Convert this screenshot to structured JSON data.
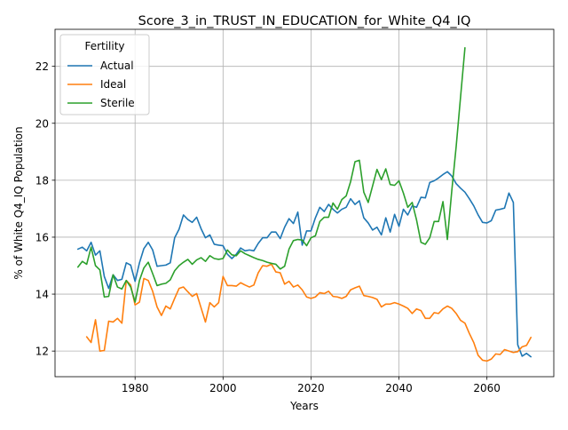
{
  "chart_data": {
    "type": "line",
    "title": "Score_3_in_TRUST_IN_EDUCATION_for_White_Q4_IQ",
    "xlabel": "Years",
    "ylabel": "% of White Q4_IQ Population",
    "xlim": [
      1961.8,
      2075.2
    ],
    "ylim": [
      11.1,
      23.3
    ],
    "xticks": [
      1980,
      2000,
      2020,
      2040,
      2060
    ],
    "yticks": [
      12,
      14,
      16,
      18,
      20,
      22
    ],
    "grid": true,
    "legend": {
      "title": "Fertility",
      "placement": "upper left"
    },
    "series": [
      {
        "name": "Actual",
        "color": "#1f77b4",
        "points": [
          [
            1967,
            15.58
          ],
          [
            1968,
            15.65
          ],
          [
            1969,
            15.52
          ],
          [
            1970,
            15.82
          ],
          [
            1971,
            15.37
          ],
          [
            1972,
            15.52
          ],
          [
            1973,
            14.62
          ],
          [
            1974,
            14.2
          ],
          [
            1975,
            14.68
          ],
          [
            1976,
            14.48
          ],
          [
            1977,
            14.52
          ],
          [
            1978,
            15.1
          ],
          [
            1979,
            15.02
          ],
          [
            1980,
            14.45
          ],
          [
            1981,
            15.1
          ],
          [
            1982,
            15.6
          ],
          [
            1983,
            15.82
          ],
          [
            1984,
            15.55
          ],
          [
            1985,
            14.98
          ],
          [
            1986,
            15.0
          ],
          [
            1987,
            15.02
          ],
          [
            1988,
            15.1
          ],
          [
            1989,
            15.98
          ],
          [
            1990,
            16.28
          ],
          [
            1991,
            16.78
          ],
          [
            1992,
            16.62
          ],
          [
            1993,
            16.52
          ],
          [
            1994,
            16.7
          ],
          [
            1995,
            16.3
          ],
          [
            1996,
            15.98
          ],
          [
            1997,
            16.08
          ],
          [
            1998,
            15.75
          ],
          [
            1999,
            15.72
          ],
          [
            2000,
            15.7
          ],
          [
            2001,
            15.4
          ],
          [
            2002,
            15.25
          ],
          [
            2003,
            15.4
          ],
          [
            2004,
            15.62
          ],
          [
            2005,
            15.52
          ],
          [
            2006,
            15.55
          ],
          [
            2007,
            15.52
          ],
          [
            2008,
            15.78
          ],
          [
            2009,
            15.98
          ],
          [
            2010,
            15.98
          ],
          [
            2011,
            16.18
          ],
          [
            2012,
            16.18
          ],
          [
            2013,
            15.95
          ],
          [
            2014,
            16.35
          ],
          [
            2015,
            16.65
          ],
          [
            2016,
            16.48
          ],
          [
            2017,
            16.88
          ],
          [
            2018,
            15.72
          ],
          [
            2019,
            16.22
          ],
          [
            2020,
            16.22
          ],
          [
            2021,
            16.68
          ],
          [
            2022,
            17.05
          ],
          [
            2023,
            16.9
          ],
          [
            2024,
            17.15
          ],
          [
            2025,
            16.98
          ],
          [
            2026,
            16.85
          ],
          [
            2027,
            16.98
          ],
          [
            2028,
            17.05
          ],
          [
            2029,
            17.35
          ],
          [
            2030,
            17.15
          ],
          [
            2031,
            17.28
          ],
          [
            2032,
            16.68
          ],
          [
            2033,
            16.5
          ],
          [
            2034,
            16.25
          ],
          [
            2035,
            16.35
          ],
          [
            2036,
            16.08
          ],
          [
            2037,
            16.68
          ],
          [
            2038,
            16.18
          ],
          [
            2039,
            16.8
          ],
          [
            2040,
            16.38
          ],
          [
            2041,
            16.98
          ],
          [
            2042,
            16.78
          ],
          [
            2043,
            17.1
          ],
          [
            2044,
            17.05
          ],
          [
            2045,
            17.4
          ],
          [
            2046,
            17.38
          ],
          [
            2047,
            17.92
          ],
          [
            2048,
            17.98
          ],
          [
            2049,
            18.08
          ],
          [
            2050,
            18.2
          ],
          [
            2051,
            18.3
          ],
          [
            2052,
            18.15
          ],
          [
            2053,
            17.88
          ],
          [
            2054,
            17.72
          ],
          [
            2055,
            17.58
          ],
          [
            2056,
            17.35
          ],
          [
            2057,
            17.1
          ],
          [
            2058,
            16.78
          ],
          [
            2059,
            16.52
          ],
          [
            2060,
            16.5
          ],
          [
            2061,
            16.58
          ],
          [
            2062,
            16.95
          ],
          [
            2063,
            16.98
          ],
          [
            2064,
            17.02
          ],
          [
            2065,
            17.55
          ],
          [
            2066,
            17.22
          ],
          [
            2067,
            12.22
          ],
          [
            2068,
            11.82
          ],
          [
            2069,
            11.92
          ],
          [
            2070,
            11.8
          ]
        ]
      },
      {
        "name": "Ideal",
        "color": "#ff7f0e",
        "points": [
          [
            1969,
            12.5
          ],
          [
            1970,
            12.3
          ],
          [
            1971,
            13.1
          ],
          [
            1972,
            12.0
          ],
          [
            1973,
            12.02
          ],
          [
            1974,
            13.05
          ],
          [
            1975,
            13.02
          ],
          [
            1976,
            13.15
          ],
          [
            1977,
            12.98
          ],
          [
            1978,
            14.48
          ],
          [
            1979,
            14.32
          ],
          [
            1980,
            13.62
          ],
          [
            1981,
            13.72
          ],
          [
            1982,
            14.55
          ],
          [
            1983,
            14.48
          ],
          [
            1984,
            14.1
          ],
          [
            1985,
            13.55
          ],
          [
            1986,
            13.25
          ],
          [
            1987,
            13.58
          ],
          [
            1988,
            13.48
          ],
          [
            1989,
            13.85
          ],
          [
            1990,
            14.2
          ],
          [
            1991,
            14.25
          ],
          [
            1992,
            14.08
          ],
          [
            1993,
            13.92
          ],
          [
            1994,
            14.02
          ],
          [
            1995,
            13.52
          ],
          [
            1996,
            13.02
          ],
          [
            1997,
            13.7
          ],
          [
            1998,
            13.55
          ],
          [
            1999,
            13.7
          ],
          [
            2000,
            14.62
          ],
          [
            2001,
            14.3
          ],
          [
            2002,
            14.3
          ],
          [
            2003,
            14.28
          ],
          [
            2004,
            14.4
          ],
          [
            2005,
            14.32
          ],
          [
            2006,
            14.25
          ],
          [
            2007,
            14.32
          ],
          [
            2008,
            14.75
          ],
          [
            2009,
            15.0
          ],
          [
            2010,
            14.98
          ],
          [
            2011,
            15.05
          ],
          [
            2012,
            14.78
          ],
          [
            2013,
            14.75
          ],
          [
            2014,
            14.35
          ],
          [
            2015,
            14.45
          ],
          [
            2016,
            14.25
          ],
          [
            2017,
            14.32
          ],
          [
            2018,
            14.15
          ],
          [
            2019,
            13.9
          ],
          [
            2020,
            13.85
          ],
          [
            2021,
            13.9
          ],
          [
            2022,
            14.05
          ],
          [
            2023,
            14.02
          ],
          [
            2024,
            14.1
          ],
          [
            2025,
            13.92
          ],
          [
            2026,
            13.9
          ],
          [
            2027,
            13.85
          ],
          [
            2028,
            13.92
          ],
          [
            2029,
            14.15
          ],
          [
            2030,
            14.22
          ],
          [
            2031,
            14.28
          ],
          [
            2032,
            13.95
          ],
          [
            2033,
            13.92
          ],
          [
            2034,
            13.88
          ],
          [
            2035,
            13.82
          ],
          [
            2036,
            13.55
          ],
          [
            2037,
            13.65
          ],
          [
            2038,
            13.65
          ],
          [
            2039,
            13.7
          ],
          [
            2040,
            13.65
          ],
          [
            2041,
            13.58
          ],
          [
            2042,
            13.5
          ],
          [
            2043,
            13.32
          ],
          [
            2044,
            13.48
          ],
          [
            2045,
            13.42
          ],
          [
            2046,
            13.15
          ],
          [
            2047,
            13.15
          ],
          [
            2048,
            13.35
          ],
          [
            2049,
            13.32
          ],
          [
            2050,
            13.48
          ],
          [
            2051,
            13.58
          ],
          [
            2052,
            13.5
          ],
          [
            2053,
            13.32
          ],
          [
            2054,
            13.08
          ],
          [
            2055,
            12.98
          ],
          [
            2056,
            12.62
          ],
          [
            2057,
            12.3
          ],
          [
            2058,
            11.85
          ],
          [
            2059,
            11.68
          ],
          [
            2060,
            11.65
          ],
          [
            2061,
            11.72
          ],
          [
            2062,
            11.9
          ],
          [
            2063,
            11.88
          ],
          [
            2064,
            12.05
          ],
          [
            2065,
            12.0
          ],
          [
            2066,
            11.95
          ],
          [
            2067,
            11.98
          ],
          [
            2068,
            12.15
          ],
          [
            2069,
            12.2
          ],
          [
            2070,
            12.48
          ]
        ]
      },
      {
        "name": "Sterile",
        "color": "#2ca02c",
        "points": [
          [
            1967,
            14.95
          ],
          [
            1968,
            15.15
          ],
          [
            1969,
            15.05
          ],
          [
            1970,
            15.65
          ],
          [
            1971,
            15.0
          ],
          [
            1972,
            14.85
          ],
          [
            1973,
            13.9
          ],
          [
            1974,
            13.92
          ],
          [
            1975,
            14.68
          ],
          [
            1976,
            14.25
          ],
          [
            1977,
            14.18
          ],
          [
            1978,
            14.48
          ],
          [
            1979,
            14.25
          ],
          [
            1980,
            13.72
          ],
          [
            1981,
            14.48
          ],
          [
            1982,
            14.92
          ],
          [
            1983,
            15.12
          ],
          [
            1984,
            14.72
          ],
          [
            1985,
            14.3
          ],
          [
            1986,
            14.35
          ],
          [
            1987,
            14.38
          ],
          [
            1988,
            14.5
          ],
          [
            1989,
            14.82
          ],
          [
            1990,
            15.0
          ],
          [
            1991,
            15.12
          ],
          [
            1992,
            15.22
          ],
          [
            1993,
            15.05
          ],
          [
            1994,
            15.2
          ],
          [
            1995,
            15.28
          ],
          [
            1996,
            15.15
          ],
          [
            1997,
            15.35
          ],
          [
            1998,
            15.25
          ],
          [
            1999,
            15.22
          ],
          [
            2000,
            15.25
          ],
          [
            2001,
            15.55
          ],
          [
            2002,
            15.38
          ],
          [
            2003,
            15.35
          ],
          [
            2004,
            15.52
          ],
          [
            2005,
            15.42
          ],
          [
            2006,
            15.35
          ],
          [
            2007,
            15.28
          ],
          [
            2008,
            15.22
          ],
          [
            2009,
            15.18
          ],
          [
            2010,
            15.12
          ],
          [
            2011,
            15.08
          ],
          [
            2012,
            15.05
          ],
          [
            2013,
            14.88
          ],
          [
            2014,
            14.98
          ],
          [
            2015,
            15.58
          ],
          [
            2016,
            15.88
          ],
          [
            2017,
            15.92
          ],
          [
            2018,
            15.9
          ],
          [
            2019,
            15.7
          ],
          [
            2020,
            15.98
          ],
          [
            2021,
            16.05
          ],
          [
            2022,
            16.55
          ],
          [
            2023,
            16.7
          ],
          [
            2024,
            16.7
          ],
          [
            2025,
            17.2
          ],
          [
            2026,
            16.98
          ],
          [
            2027,
            17.32
          ],
          [
            2028,
            17.45
          ],
          [
            2029,
            17.95
          ],
          [
            2030,
            18.65
          ],
          [
            2031,
            18.7
          ],
          [
            2032,
            17.58
          ],
          [
            2033,
            17.22
          ],
          [
            2034,
            17.8
          ],
          [
            2035,
            18.38
          ],
          [
            2036,
            18.02
          ],
          [
            2037,
            18.4
          ],
          [
            2038,
            17.85
          ],
          [
            2039,
            17.82
          ],
          [
            2040,
            17.98
          ],
          [
            2041,
            17.55
          ],
          [
            2042,
            17.05
          ],
          [
            2043,
            17.22
          ],
          [
            2044,
            16.6
          ],
          [
            2045,
            15.82
          ],
          [
            2046,
            15.75
          ],
          [
            2047,
            15.98
          ],
          [
            2048,
            16.55
          ],
          [
            2049,
            16.55
          ],
          [
            2050,
            17.25
          ],
          [
            2051,
            15.92
          ],
          [
            2052,
            17.62
          ],
          [
            2053,
            19.18
          ],
          [
            2054,
            20.92
          ],
          [
            2055,
            22.65
          ]
        ]
      }
    ]
  }
}
